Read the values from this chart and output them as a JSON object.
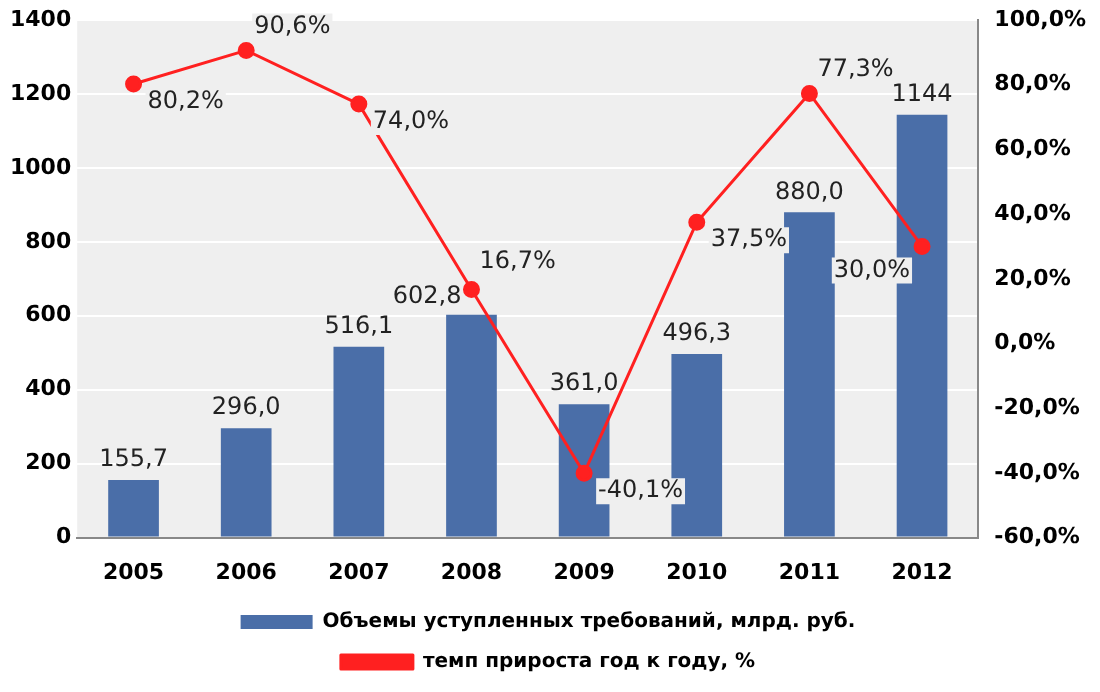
{
  "chart_data": {
    "type": "bar",
    "categories": [
      "2005",
      "2006",
      "2007",
      "2008",
      "2009",
      "2010",
      "2011",
      "2012"
    ],
    "series": [
      {
        "name": "Объемы уступленных требований, млрд. руб.",
        "color": "#4a6ea8",
        "values": [
          155.7,
          296.0,
          516.1,
          602.8,
          361.0,
          496.3,
          880.0,
          1144
        ],
        "value_labels": [
          "155,7",
          "296,0",
          "516,1",
          "602,8",
          "361,0",
          "496,3",
          "880,0",
          "1144"
        ]
      },
      {
        "name": "темп прироста год к году, %",
        "type": "line",
        "axis": "y2",
        "color": "#ff2020",
        "marker": "circle",
        "values": [
          80.2,
          90.6,
          74.0,
          16.7,
          -40.1,
          37.5,
          77.3,
          30.0
        ],
        "value_labels": [
          "80,2%",
          "90,6%",
          "74,0%",
          "16,7%",
          "-40,1%",
          "37,5%",
          "77,3%",
          "30,0%"
        ]
      }
    ],
    "ylim": [
      0,
      1400
    ],
    "yticks": [
      0,
      200,
      400,
      600,
      800,
      1000,
      1200,
      1400
    ],
    "y2lim": [
      -60,
      100
    ],
    "y2ticks": [
      {
        "value": -60,
        "label": "-60,0%"
      },
      {
        "value": -40,
        "label": "-40,0%"
      },
      {
        "value": -20,
        "label": "-20,0%"
      },
      {
        "value": 0,
        "label": "0,0%"
      },
      {
        "value": 20,
        "label": "20,0%"
      },
      {
        "value": 40,
        "label": "40,0%"
      },
      {
        "value": 60,
        "label": "60,0%"
      },
      {
        "value": 80,
        "label": "80,0%"
      },
      {
        "value": 100,
        "label": "100,0%"
      }
    ],
    "grid": "y",
    "legend": "bottom"
  }
}
